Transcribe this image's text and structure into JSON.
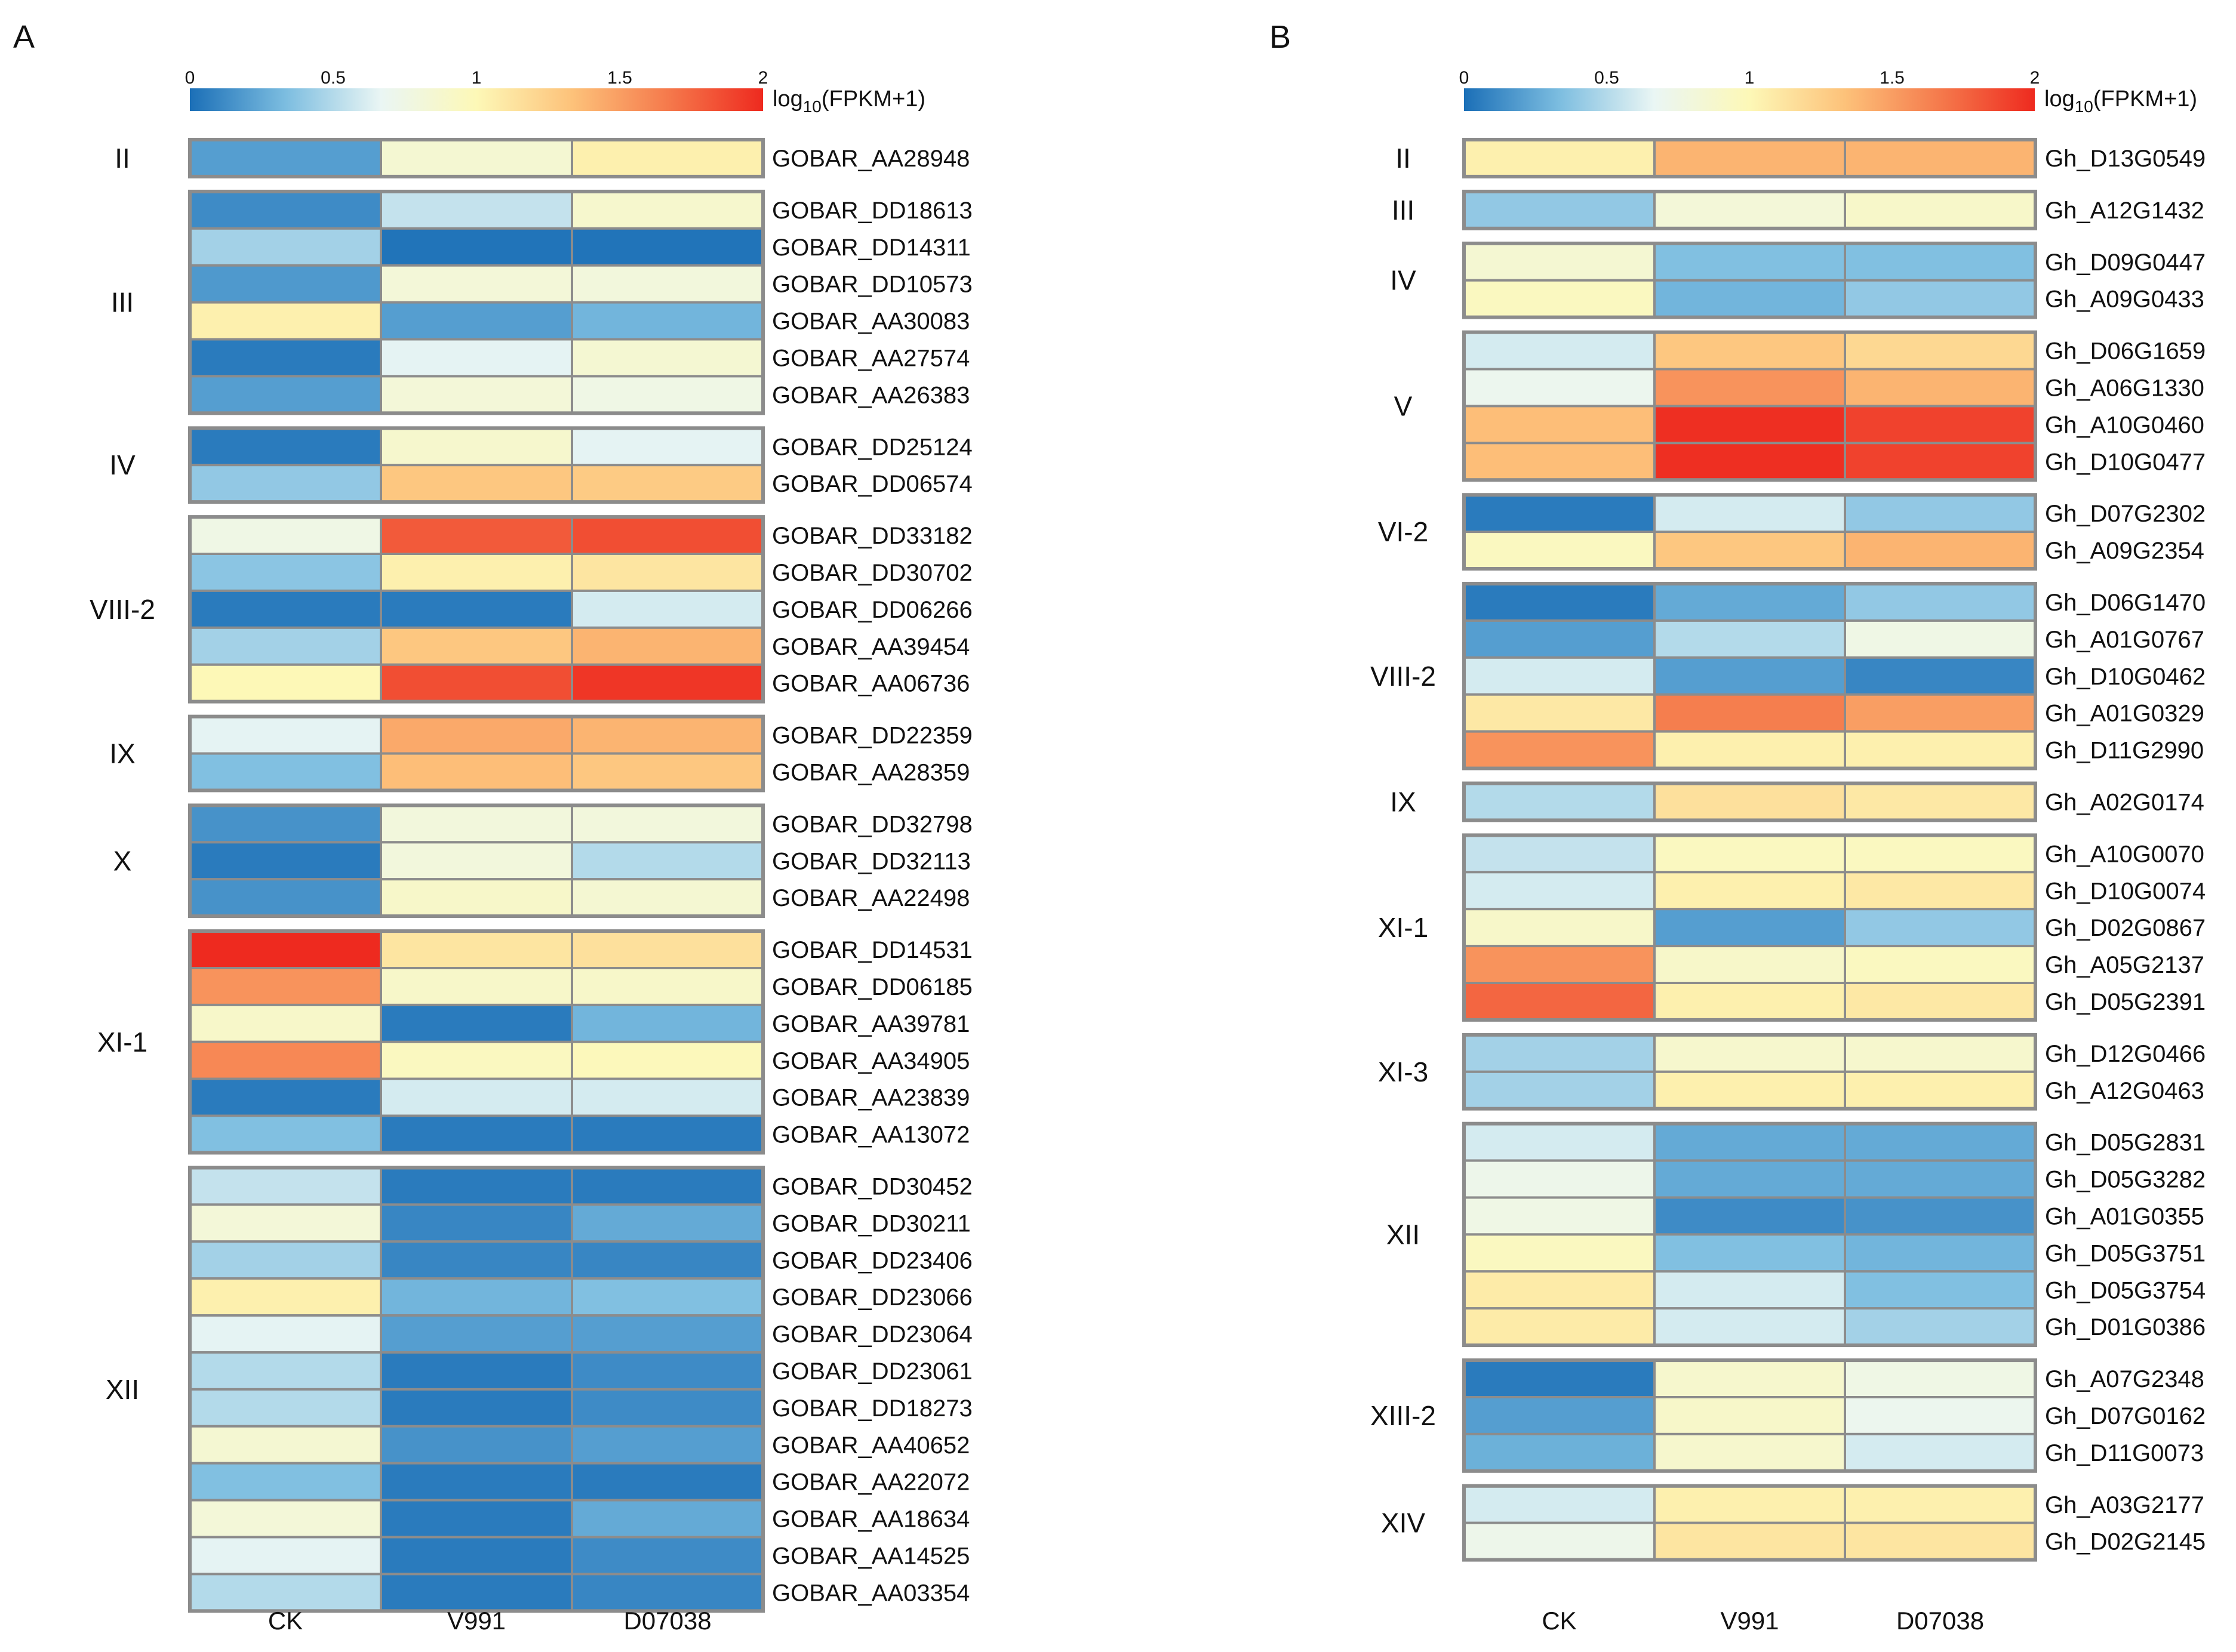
{
  "chart_data": [
    {
      "panel_label": "A",
      "type": "heatmap",
      "title": "",
      "columns": [
        "CK",
        "V991",
        "D07038"
      ],
      "colorbar": {
        "min": 0,
        "max": 2,
        "ticks": [
          "0",
          "0.5",
          "1",
          "1.5",
          "2"
        ],
        "label_main": "log",
        "label_sub": "10",
        "label_rest": "(FPKM+1)",
        "colors": [
          "#1b6fb7",
          "#7cbde0",
          "#eaf6f4",
          "#fdf8b7",
          "#fdc27a",
          "#f57a4c",
          "#ee2a1f"
        ]
      },
      "groups": [
        {
          "name": "II",
          "rows": [
            {
              "gene": "GOBAR_AA28948",
              "values": [
                0.2,
                0.85,
                1.05
              ]
            }
          ]
        },
        {
          "name": "III",
          "rows": [
            {
              "gene": "GOBAR_DD18613",
              "values": [
                0.12,
                0.55,
                0.88
              ]
            },
            {
              "gene": "GOBAR_DD14311",
              "values": [
                0.45,
                0.02,
                0.02
              ]
            },
            {
              "gene": "GOBAR_DD10573",
              "values": [
                0.18,
                0.82,
                0.8
              ]
            },
            {
              "gene": "GOBAR_AA30083",
              "values": [
                1.05,
                0.2,
                0.3
              ]
            },
            {
              "gene": "GOBAR_AA27574",
              "values": [
                0.05,
                0.65,
                0.85
              ]
            },
            {
              "gene": "GOBAR_AA26383",
              "values": [
                0.2,
                0.82,
                0.75
              ]
            }
          ]
        },
        {
          "name": "IV",
          "rows": [
            {
              "gene": "GOBAR_DD25124",
              "values": [
                0.05,
                0.88,
                0.65
              ]
            },
            {
              "gene": "GOBAR_DD06574",
              "values": [
                0.4,
                1.3,
                1.28
              ]
            }
          ]
        },
        {
          "name": "VIII-2",
          "rows": [
            {
              "gene": "GOBAR_DD33182",
              "values": [
                0.75,
                1.8,
                1.85
              ]
            },
            {
              "gene": "GOBAR_DD30702",
              "values": [
                0.38,
                1.05,
                1.12
              ]
            },
            {
              "gene": "GOBAR_DD06266",
              "values": [
                0.05,
                0.05,
                0.6
              ]
            },
            {
              "gene": "GOBAR_AA39454",
              "values": [
                0.45,
                1.3,
                1.4
              ]
            },
            {
              "gene": "GOBAR_AA06736",
              "values": [
                1.0,
                1.85,
                1.95
              ]
            }
          ]
        },
        {
          "name": "IX",
          "rows": [
            {
              "gene": "GOBAR_DD22359",
              "values": [
                0.65,
                1.45,
                1.4
              ]
            },
            {
              "gene": "GOBAR_AA28359",
              "values": [
                0.35,
                1.35,
                1.3
              ]
            }
          ]
        },
        {
          "name": "X",
          "rows": [
            {
              "gene": "GOBAR_DD32798",
              "values": [
                0.15,
                0.8,
                0.8
              ]
            },
            {
              "gene": "GOBAR_DD32113",
              "values": [
                0.05,
                0.8,
                0.5
              ]
            },
            {
              "gene": "GOBAR_AA22498",
              "values": [
                0.15,
                0.9,
                0.85
              ]
            }
          ]
        },
        {
          "name": "XI-1",
          "rows": [
            {
              "gene": "GOBAR_DD14531",
              "values": [
                2.0,
                1.12,
                1.15
              ]
            },
            {
              "gene": "GOBAR_DD06185",
              "values": [
                1.55,
                0.9,
                0.9
              ]
            },
            {
              "gene": "GOBAR_AA39781",
              "values": [
                0.9,
                0.05,
                0.3
              ]
            },
            {
              "gene": "GOBAR_AA34905",
              "values": [
                1.6,
                0.95,
                0.98
              ]
            },
            {
              "gene": "GOBAR_AA23839",
              "values": [
                0.05,
                0.6,
                0.6
              ]
            },
            {
              "gene": "GOBAR_AA13072",
              "values": [
                0.35,
                0.05,
                0.05
              ]
            }
          ]
        },
        {
          "name": "XII",
          "rows": [
            {
              "gene": "GOBAR_DD30452",
              "values": [
                0.55,
                0.05,
                0.05
              ]
            },
            {
              "gene": "GOBAR_DD30211",
              "values": [
                0.82,
                0.1,
                0.25
              ]
            },
            {
              "gene": "GOBAR_DD23406",
              "values": [
                0.45,
                0.1,
                0.1
              ]
            },
            {
              "gene": "GOBAR_DD23066",
              "values": [
                1.05,
                0.3,
                0.35
              ]
            },
            {
              "gene": "GOBAR_DD23064",
              "values": [
                0.65,
                0.2,
                0.2
              ]
            },
            {
              "gene": "GOBAR_DD23061",
              "values": [
                0.5,
                0.05,
                0.12
              ]
            },
            {
              "gene": "GOBAR_DD18273",
              "values": [
                0.5,
                0.05,
                0.12
              ]
            },
            {
              "gene": "GOBAR_AA40652",
              "values": [
                0.85,
                0.15,
                0.2
              ]
            },
            {
              "gene": "GOBAR_AA22072",
              "values": [
                0.35,
                0.05,
                0.05
              ]
            },
            {
              "gene": "GOBAR_AA18634",
              "values": [
                0.82,
                0.05,
                0.25
              ]
            },
            {
              "gene": "GOBAR_AA14525",
              "values": [
                0.65,
                0.05,
                0.12
              ]
            },
            {
              "gene": "GOBAR_AA03354",
              "values": [
                0.5,
                0.05,
                0.1
              ]
            }
          ]
        }
      ]
    },
    {
      "panel_label": "B",
      "type": "heatmap",
      "title": "",
      "columns": [
        "CK",
        "V991",
        "D07038"
      ],
      "colorbar": {
        "min": 0,
        "max": 2,
        "ticks": [
          "0",
          "0.5",
          "1",
          "1.5",
          "2"
        ],
        "label_main": "log",
        "label_sub": "10",
        "label_rest": "(FPKM+1)",
        "colors": [
          "#1b6fb7",
          "#7cbde0",
          "#eaf6f4",
          "#fdf8b7",
          "#fdc27a",
          "#f57a4c",
          "#ee2a1f"
        ]
      },
      "groups": [
        {
          "name": "II",
          "rows": [
            {
              "gene": "Gh_D13G0549",
              "values": [
                1.05,
                1.4,
                1.4
              ]
            }
          ]
        },
        {
          "name": "III",
          "rows": [
            {
              "gene": "Gh_A12G1432",
              "values": [
                0.4,
                0.82,
                0.9
              ]
            }
          ]
        },
        {
          "name": "IV",
          "rows": [
            {
              "gene": "Gh_D09G0447",
              "values": [
                0.85,
                0.35,
                0.35
              ]
            },
            {
              "gene": "Gh_A09G0433",
              "values": [
                0.95,
                0.3,
                0.4
              ]
            }
          ]
        },
        {
          "name": "V",
          "rows": [
            {
              "gene": "Gh_D06G1659",
              "values": [
                0.6,
                1.3,
                1.2
              ]
            },
            {
              "gene": "Gh_A06G1330",
              "values": [
                0.7,
                1.55,
                1.4
              ]
            },
            {
              "gene": "Gh_A10G0460",
              "values": [
                1.35,
                1.98,
                1.9
              ]
            },
            {
              "gene": "Gh_D10G0477",
              "values": [
                1.35,
                1.98,
                1.9
              ]
            }
          ]
        },
        {
          "name": "VI-2",
          "rows": [
            {
              "gene": "Gh_D07G2302",
              "values": [
                0.05,
                0.6,
                0.4
              ]
            },
            {
              "gene": "Gh_A09G2354",
              "values": [
                0.95,
                1.3,
                1.4
              ]
            }
          ]
        },
        {
          "name": "VIII-2",
          "rows": [
            {
              "gene": "Gh_D06G1470",
              "values": [
                0.05,
                0.25,
                0.4
              ]
            },
            {
              "gene": "Gh_A01G0767",
              "values": [
                0.2,
                0.5,
                0.75
              ]
            },
            {
              "gene": "Gh_D10G0462",
              "values": [
                0.6,
                0.2,
                0.1
              ]
            },
            {
              "gene": "Gh_A01G0329",
              "values": [
                1.1,
                1.65,
                1.5
              ]
            },
            {
              "gene": "Gh_D11G2990",
              "values": [
                1.55,
                1.05,
                1.05
              ]
            }
          ]
        },
        {
          "name": "IX",
          "rows": [
            {
              "gene": "Gh_A02G0174",
              "values": [
                0.5,
                1.15,
                1.1
              ]
            }
          ]
        },
        {
          "name": "XI-1",
          "rows": [
            {
              "gene": "Gh_A10G0070",
              "values": [
                0.55,
                0.95,
                0.95
              ]
            },
            {
              "gene": "Gh_D10G0074",
              "values": [
                0.6,
                1.05,
                1.1
              ]
            },
            {
              "gene": "Gh_D02G0867",
              "values": [
                0.9,
                0.2,
                0.4
              ]
            },
            {
              "gene": "Gh_A05G2137",
              "values": [
                1.55,
                0.9,
                0.95
              ]
            },
            {
              "gene": "Gh_D05G2391",
              "values": [
                1.75,
                1.05,
                1.1
              ]
            }
          ]
        },
        {
          "name": "XI-3",
          "rows": [
            {
              "gene": "Gh_D12G0466",
              "values": [
                0.45,
                0.88,
                0.88
              ]
            },
            {
              "gene": "Gh_A12G0463",
              "values": [
                0.45,
                1.05,
                1.05
              ]
            }
          ]
        },
        {
          "name": "XII",
          "rows": [
            {
              "gene": "Gh_D05G2831",
              "values": [
                0.6,
                0.25,
                0.25
              ]
            },
            {
              "gene": "Gh_D05G3282",
              "values": [
                0.72,
                0.25,
                0.25
              ]
            },
            {
              "gene": "Gh_A01G0355",
              "values": [
                0.75,
                0.12,
                0.15
              ]
            },
            {
              "gene": "Gh_D05G3751",
              "values": [
                0.95,
                0.35,
                0.3
              ]
            },
            {
              "gene": "Gh_D05G3754",
              "values": [
                1.08,
                0.6,
                0.35
              ]
            },
            {
              "gene": "Gh_D01G0386",
              "values": [
                1.08,
                0.6,
                0.45
              ]
            }
          ]
        },
        {
          "name": "XIII-2",
          "rows": [
            {
              "gene": "Gh_A07G2348",
              "values": [
                0.05,
                0.88,
                0.75
              ]
            },
            {
              "gene": "Gh_D07G0162",
              "values": [
                0.2,
                0.9,
                0.7
              ]
            },
            {
              "gene": "Gh_D11G0073",
              "values": [
                0.28,
                0.88,
                0.6
              ]
            }
          ]
        },
        {
          "name": "XIV",
          "rows": [
            {
              "gene": "Gh_A03G2177",
              "values": [
                0.6,
                1.05,
                1.05
              ]
            },
            {
              "gene": "Gh_D02G2145",
              "values": [
                0.72,
                1.12,
                1.12
              ]
            }
          ]
        }
      ]
    }
  ]
}
